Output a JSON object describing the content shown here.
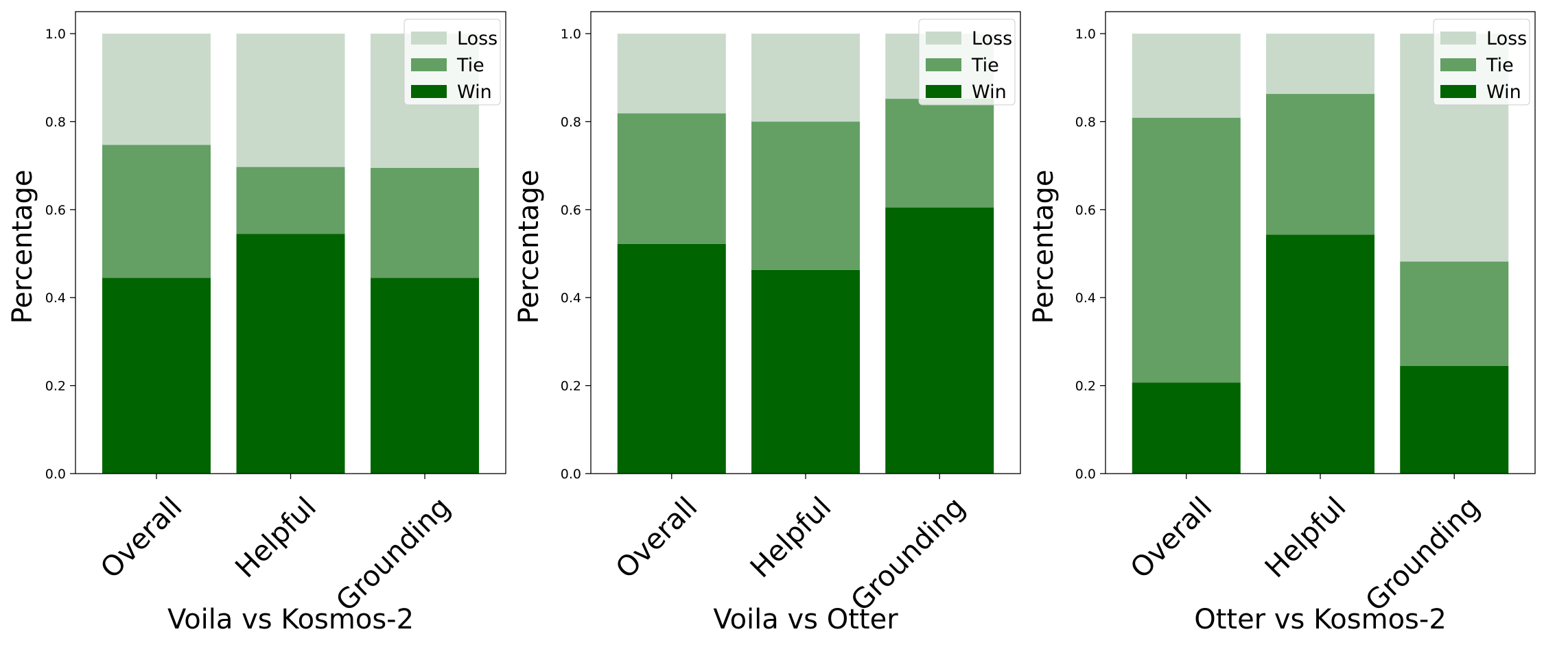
{
  "colors": {
    "win": "#006400",
    "tie": "#649f64",
    "loss": "#c9dacb",
    "axis": "#000000",
    "legend_bg": "#ffffff"
  },
  "chart_data": [
    {
      "type": "bar",
      "stacked": true,
      "xlabel": "Voila vs Kosmos-2",
      "ylabel": "Percentage",
      "ylim": [
        0,
        1.05
      ],
      "yticks": [
        "0.0",
        "0.2",
        "0.4",
        "0.6",
        "0.8",
        "1.0"
      ],
      "categories": [
        "Overall",
        "Helpful",
        "Grounding"
      ],
      "legend_position": "top-right",
      "legend": [
        "Loss",
        "Tie",
        "Win"
      ],
      "series": [
        {
          "name": "Win",
          "values": [
            0.445,
            0.545,
            0.445
          ]
        },
        {
          "name": "Tie",
          "values": [
            0.302,
            0.152,
            0.25
          ]
        },
        {
          "name": "Loss",
          "values": [
            0.253,
            0.303,
            0.305
          ]
        }
      ]
    },
    {
      "type": "bar",
      "stacked": true,
      "xlabel": "Voila vs Otter",
      "ylabel": "Percentage",
      "ylim": [
        0,
        1.05
      ],
      "yticks": [
        "0.0",
        "0.2",
        "0.4",
        "0.6",
        "0.8",
        "1.0"
      ],
      "categories": [
        "Overall",
        "Helpful",
        "Grounding"
      ],
      "legend_position": "top-right",
      "legend": [
        "Loss",
        "Tie",
        "Win"
      ],
      "series": [
        {
          "name": "Win",
          "values": [
            0.522,
            0.463,
            0.605
          ]
        },
        {
          "name": "Tie",
          "values": [
            0.297,
            0.337,
            0.247
          ]
        },
        {
          "name": "Loss",
          "values": [
            0.181,
            0.2,
            0.148
          ]
        }
      ]
    },
    {
      "type": "bar",
      "stacked": true,
      "xlabel": "Otter vs Kosmos-2",
      "ylabel": "Percentage",
      "ylim": [
        0,
        1.05
      ],
      "yticks": [
        "0.0",
        "0.2",
        "0.4",
        "0.6",
        "0.8",
        "1.0"
      ],
      "categories": [
        "Overall",
        "Helpful",
        "Grounding"
      ],
      "legend_position": "top-right",
      "legend": [
        "Loss",
        "Tie",
        "Win"
      ],
      "series": [
        {
          "name": "Win",
          "values": [
            0.207,
            0.543,
            0.245
          ]
        },
        {
          "name": "Tie",
          "values": [
            0.602,
            0.32,
            0.237
          ]
        },
        {
          "name": "Loss",
          "values": [
            0.191,
            0.137,
            0.518
          ]
        }
      ]
    }
  ]
}
